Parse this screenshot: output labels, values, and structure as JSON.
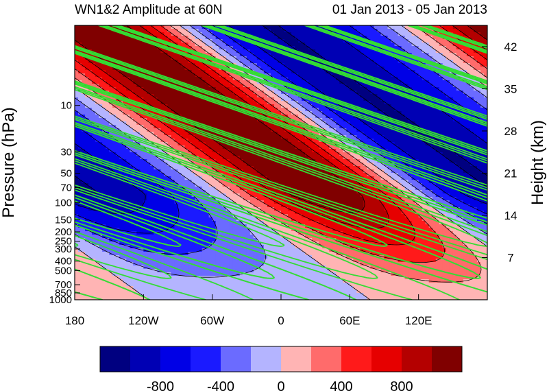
{
  "chart_data": {
    "type": "heatmap",
    "title": "WN1&2 Amplitude at 60N",
    "subtitle": "01 Jan 2013 - 05 Jan 2013",
    "xlabel": "",
    "ylabel": "Pressure (hPa)",
    "ylabel_right": "Height (km)",
    "x_ticks": [
      {
        "value": 180,
        "label": "180"
      },
      {
        "value": 240,
        "label": "120W"
      },
      {
        "value": 300,
        "label": "60W"
      },
      {
        "value": 360,
        "label": "0"
      },
      {
        "value": 420,
        "label": "60E"
      },
      {
        "value": 480,
        "label": "120E"
      }
    ],
    "xlim": [
      180,
      540
    ],
    "y_ticks": [
      {
        "value": 10,
        "label": "10"
      },
      {
        "value": 30,
        "label": "30"
      },
      {
        "value": 50,
        "label": "50"
      },
      {
        "value": 70,
        "label": "70"
      },
      {
        "value": 100,
        "label": "100"
      },
      {
        "value": 150,
        "label": "150"
      },
      {
        "value": 200,
        "label": "200"
      },
      {
        "value": 250,
        "label": "250"
      },
      {
        "value": 300,
        "label": "300"
      },
      {
        "value": 400,
        "label": "400"
      },
      {
        "value": 500,
        "label": "500"
      },
      {
        "value": 700,
        "label": "700"
      },
      {
        "value": 850,
        "label": "850"
      },
      {
        "value": 1000,
        "label": "1000"
      }
    ],
    "ylim": [
      1000,
      1.5
    ],
    "y_scale": "log",
    "height_ticks": [
      {
        "value": 7,
        "label": "7"
      },
      {
        "value": 14,
        "label": "14"
      },
      {
        "value": 21,
        "label": "21"
      },
      {
        "value": 28,
        "label": "28"
      },
      {
        "value": 35,
        "label": "35"
      },
      {
        "value": 42,
        "label": "42"
      }
    ],
    "colorbar": {
      "levels": [
        -1000,
        -800,
        -600,
        -400,
        -200,
        0,
        200,
        400,
        600,
        800,
        1000
      ],
      "labels": [
        {
          "value": -800,
          "label": "-800"
        },
        {
          "value": -400,
          "label": "-400"
        },
        {
          "value": 0,
          "label": "0"
        },
        {
          "value": 400,
          "label": "400"
        },
        {
          "value": 800,
          "label": "800"
        }
      ],
      "colors": [
        "#000080",
        "#0000b4",
        "#0000e6",
        "#1a1aff",
        "#6b6bff",
        "#b4b4ff",
        "#ffb4b4",
        "#ff6b6b",
        "#ff1a1a",
        "#e60000",
        "#b40000",
        "#800000"
      ]
    },
    "field": {
      "description_free": true,
      "wave_amplitude": 1100,
      "wavenumber1_phase_deg": 160,
      "wavenumber2_weight": 0.15
    },
    "overlay": {
      "line_color": "#33dd33",
      "positive_style": "solid",
      "negative_style": "dashed"
    },
    "grid": false
  }
}
